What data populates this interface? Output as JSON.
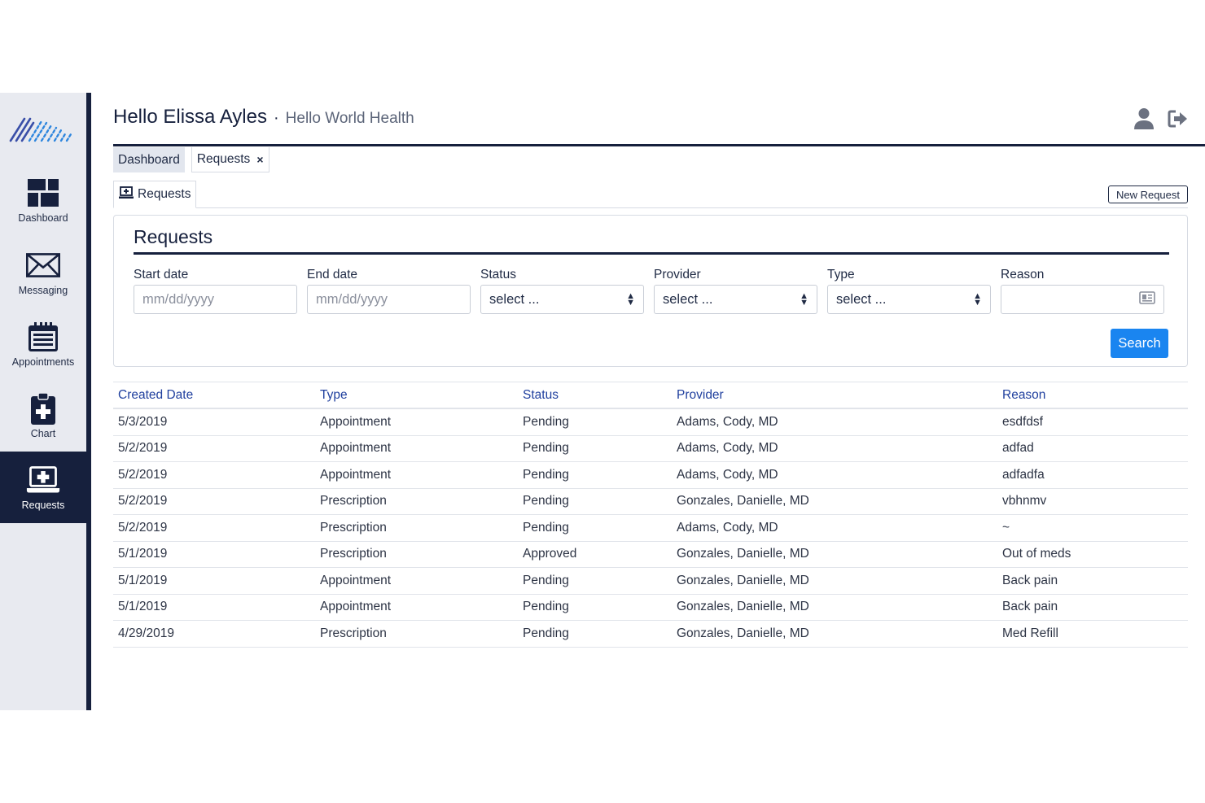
{
  "header": {
    "greeting": "Hello Elissa Ayles",
    "separator": "·",
    "organization": "Hello World Health"
  },
  "sidebar": {
    "items": [
      {
        "label": "Dashboard",
        "icon": "dashboard-icon"
      },
      {
        "label": "Messaging",
        "icon": "envelope-icon"
      },
      {
        "label": "Appointments",
        "icon": "calendar-icon"
      },
      {
        "label": "Chart",
        "icon": "clipboard-plus-icon"
      },
      {
        "label": "Requests",
        "icon": "laptop-plus-icon",
        "active": true
      }
    ]
  },
  "tabs": {
    "dashboard": "Dashboard",
    "requests": "Requests",
    "close": "×"
  },
  "subtabs": {
    "requests": "Requests",
    "new_request": "New Request"
  },
  "filters": {
    "title": "Requests",
    "start_date": {
      "label": "Start date",
      "placeholder": "mm/dd/yyyy"
    },
    "end_date": {
      "label": "End date",
      "placeholder": "mm/dd/yyyy"
    },
    "status": {
      "label": "Status",
      "value": "select ..."
    },
    "provider": {
      "label": "Provider",
      "value": "select ..."
    },
    "type": {
      "label": "Type",
      "value": "select ..."
    },
    "reason": {
      "label": "Reason",
      "value": ""
    },
    "search": "Search"
  },
  "table": {
    "columns": [
      "Created Date",
      "Type",
      "Status",
      "Provider",
      "Reason"
    ],
    "rows": [
      [
        "5/3/2019",
        "Appointment",
        "Pending",
        "Adams, Cody, MD",
        "esdfdsf"
      ],
      [
        "5/2/2019",
        "Appointment",
        "Pending",
        "Adams, Cody, MD",
        "adfad"
      ],
      [
        "5/2/2019",
        "Appointment",
        "Pending",
        "Adams, Cody, MD",
        "adfadfa"
      ],
      [
        "5/2/2019",
        "Prescription",
        "Pending",
        "Gonzales, Danielle, MD",
        "vbhnmv"
      ],
      [
        "5/2/2019",
        "Prescription",
        "Pending",
        "Adams, Cody, MD",
        "~"
      ],
      [
        "5/1/2019",
        "Prescription",
        "Approved",
        "Gonzales, Danielle, MD",
        "Out of meds"
      ],
      [
        "5/1/2019",
        "Appointment",
        "Pending",
        "Gonzales, Danielle, MD",
        "Back pain"
      ],
      [
        "5/1/2019",
        "Appointment",
        "Pending",
        "Gonzales, Danielle, MD",
        "Back pain"
      ],
      [
        "4/29/2019",
        "Prescription",
        "Pending",
        "Gonzales, Danielle, MD",
        "Med Refill"
      ]
    ]
  },
  "colors": {
    "navy": "#16203d",
    "sidebar_bg": "#e8eaf0",
    "accent_blue": "#1a85f0",
    "header_link": "#1f3f9e"
  }
}
